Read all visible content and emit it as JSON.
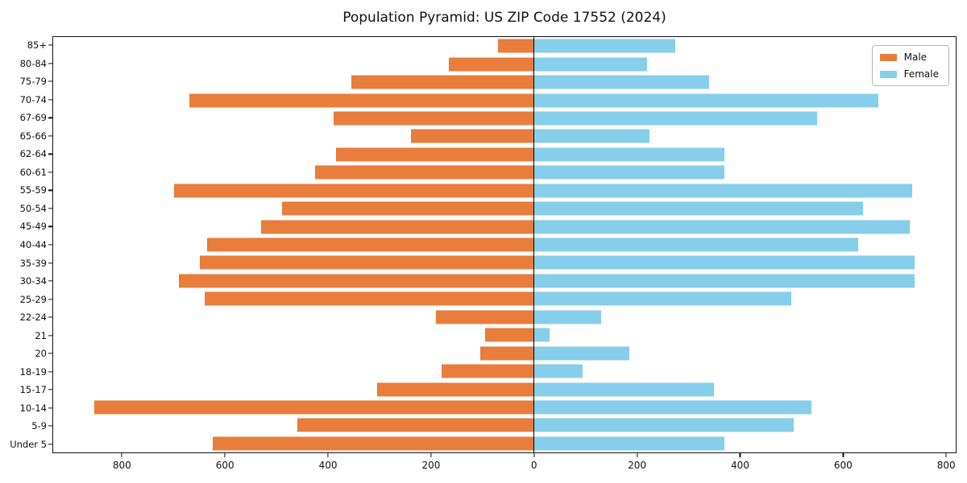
{
  "title": "Population Pyramid: US ZIP Code 17552 (2024)",
  "legend": {
    "male_label": "Male",
    "female_label": "Female",
    "position": "upper right"
  },
  "colors": {
    "male": "#e87d3c",
    "female": "#87ceeb",
    "axis": "#111111",
    "background": "#ffffff"
  },
  "chart_data": {
    "type": "bar",
    "subtype": "population-pyramid",
    "title": "Population Pyramid: US ZIP Code 17552 (2024)",
    "xlabel": "",
    "ylabel": "",
    "grid": false,
    "legend_position": "upper right",
    "categories_top_to_bottom": [
      "85+",
      "80-84",
      "75-79",
      "70-74",
      "67-69",
      "65-66",
      "62-64",
      "60-61",
      "55-59",
      "50-54",
      "45-49",
      "40-44",
      "35-39",
      "30-34",
      "25-29",
      "22-24",
      "21",
      "20",
      "18-19",
      "15-17",
      "10-14",
      "5-9",
      "Under 5"
    ],
    "series": [
      {
        "name": "Male",
        "side": "left",
        "color": "#e87d3c",
        "values": [
          70,
          165,
          355,
          670,
          390,
          240,
          385,
          425,
          700,
          490,
          530,
          635,
          650,
          690,
          640,
          190,
          95,
          105,
          180,
          305,
          855,
          460,
          625
        ]
      },
      {
        "name": "Female",
        "side": "right",
        "color": "#87ceeb",
        "values": [
          275,
          220,
          340,
          670,
          550,
          225,
          370,
          370,
          735,
          640,
          730,
          630,
          740,
          740,
          500,
          130,
          30,
          185,
          95,
          350,
          540,
          505,
          370
        ]
      }
    ],
    "x_tick_positions": [
      -800,
      -600,
      -400,
      -200,
      0,
      200,
      400,
      600,
      800
    ],
    "x_tick_labels": [
      "800",
      "600",
      "400",
      "200",
      "0",
      "200",
      "400",
      "600",
      "800"
    ],
    "xlim": [
      -935,
      820
    ],
    "zero_axis_line": true
  }
}
